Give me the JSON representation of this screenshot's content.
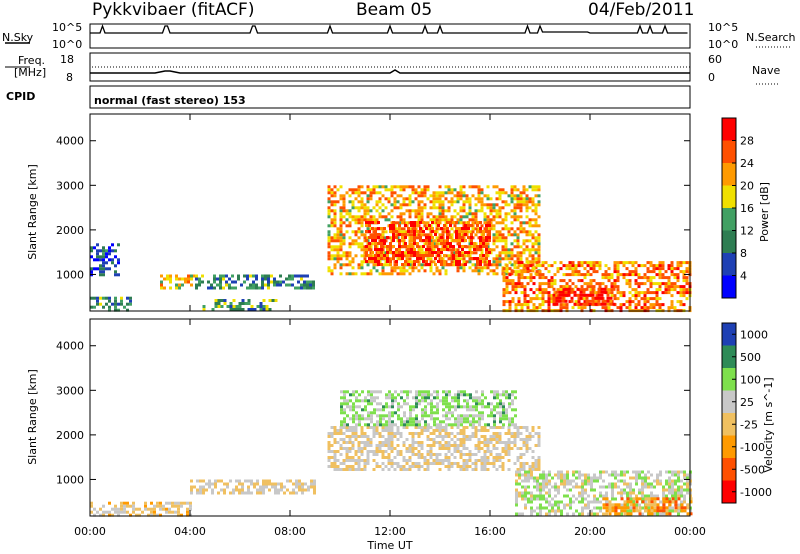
{
  "header": {
    "station": "Pykkvibaer (fitACF)",
    "beam": "Beam 05",
    "date": "04/Feb/2011"
  },
  "top_panels": {
    "nsky_label": "N.Sky",
    "nsearch_label": "N.Search",
    "freq_label_1": "Freq.",
    "freq_label_2": "[MHz]",
    "nave_label": "Nave",
    "cpid_label": "CPID",
    "cpid_text": "normal (fast stereo) 153",
    "noise_ticks_left": [
      "10^5",
      "10^0"
    ],
    "noise_ticks_right": [
      "10^5",
      "10^0"
    ],
    "freq_ticks_left": [
      "18",
      "8"
    ],
    "nave_ticks_right": [
      "60",
      "0"
    ]
  },
  "x_axis": {
    "label": "Time UT",
    "ticks": [
      "00:00",
      "04:00",
      "08:00",
      "12:00",
      "16:00",
      "20:00",
      "00:00"
    ]
  },
  "power_panel": {
    "ylabel": "Slant Range [km]",
    "yticks": [
      "1000",
      "2000",
      "3000",
      "4000"
    ],
    "colorbar_label": "Power [dB]",
    "colorbar_ticks": [
      "4",
      "8",
      "12",
      "16",
      "20",
      "24",
      "28"
    ]
  },
  "velocity_panel": {
    "ylabel": "Slant Range [km]",
    "yticks": [
      "1000",
      "2000",
      "3000",
      "4000"
    ],
    "colorbar_label": "Velocity [m s^-1]",
    "colorbar_ticks": [
      "1000",
      "500",
      "100",
      "25",
      "-25",
      "-100",
      "-500",
      "-1000"
    ]
  },
  "chart_data": [
    {
      "type": "heatmap",
      "title": "Power",
      "xlabel": "Time UT",
      "ylabel": "Slant Range [km]",
      "x_range_hours": [
        0,
        24
      ],
      "y_range_km": [
        180,
        4600
      ],
      "color_scale": {
        "label": "Power [dB]",
        "min": 0,
        "max": 30,
        "colors": [
          "#0000ff",
          "#1e40b4",
          "#2e7d52",
          "#41a063",
          "#f0e000",
          "#ff9a00",
          "#ff5000",
          "#ff0000"
        ]
      },
      "echo_regions": [
        {
          "t": [
            0.0,
            1.6
          ],
          "range_km": [
            200,
            500
          ],
          "power_db": 10
        },
        {
          "t": [
            0.0,
            1.2
          ],
          "range_km": [
            1000,
            1700
          ],
          "power_db": 6
        },
        {
          "t": [
            2.8,
            4.2
          ],
          "range_km": [
            700,
            1000
          ],
          "power_db": 18
        },
        {
          "t": [
            4.5,
            7.5
          ],
          "range_km": [
            200,
            450
          ],
          "power_db": 12
        },
        {
          "t": [
            4.2,
            9.0
          ],
          "range_km": [
            700,
            1000
          ],
          "power_db": 10
        },
        {
          "t": [
            9.5,
            18.0
          ],
          "range_km": [
            1000,
            3000
          ],
          "power_db": 20
        },
        {
          "t": [
            11.0,
            16.0
          ],
          "range_km": [
            1200,
            2200
          ],
          "power_db": 26
        },
        {
          "t": [
            16.5,
            24.0
          ],
          "range_km": [
            200,
            1300
          ],
          "power_db": 22
        },
        {
          "t": [
            18.5,
            21.0
          ],
          "range_km": [
            300,
            700
          ],
          "power_db": 28
        }
      ]
    },
    {
      "type": "heatmap",
      "title": "Velocity",
      "xlabel": "Time UT",
      "ylabel": "Slant Range [km]",
      "x_range_hours": [
        0,
        24
      ],
      "y_range_km": [
        180,
        4600
      ],
      "color_scale": {
        "label": "Velocity [m s^-1]",
        "min": -1000,
        "max": 1000,
        "colors": [
          "#ff0000",
          "#ff5000",
          "#ff9a00",
          "#f0c060",
          "#c8c8c8",
          "#7ee04c",
          "#2e8b57",
          "#1e40b4"
        ]
      },
      "echo_regions": [
        {
          "t": [
            0.0,
            4.0
          ],
          "range_km": [
            200,
            500
          ],
          "velocity_ms": -50
        },
        {
          "t": [
            4.0,
            9.0
          ],
          "range_km": [
            700,
            1000
          ],
          "velocity_ms": 0
        },
        {
          "t": [
            9.5,
            18.0
          ],
          "range_km": [
            1200,
            2200
          ],
          "velocity_ms": 0
        },
        {
          "t": [
            10.0,
            17.0
          ],
          "range_km": [
            2200,
            3000
          ],
          "velocity_ms": 300
        },
        {
          "t": [
            17.0,
            24.0
          ],
          "range_km": [
            200,
            1200
          ],
          "velocity_ms": 150
        },
        {
          "t": [
            20.5,
            24.0
          ],
          "range_km": [
            200,
            600
          ],
          "velocity_ms": -400
        }
      ]
    }
  ]
}
